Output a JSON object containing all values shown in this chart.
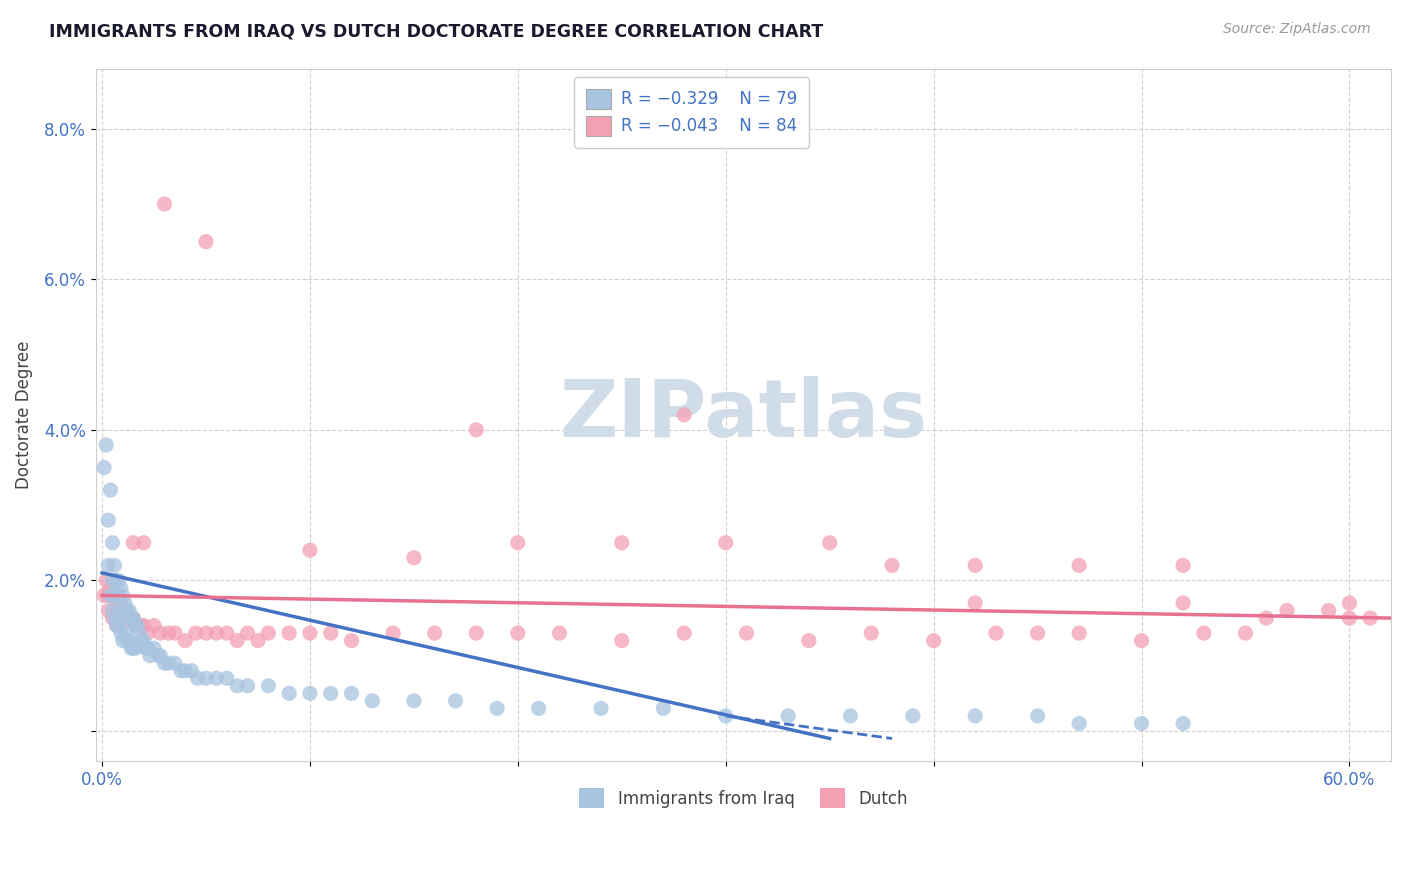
{
  "title": "IMMIGRANTS FROM IRAQ VS DUTCH DOCTORATE DEGREE CORRELATION CHART",
  "source": "Source: ZipAtlas.com",
  "ylabel": "Doctorate Degree",
  "series1_label": "Immigrants from Iraq",
  "series2_label": "Dutch",
  "legend_r1": "R = -0.329",
  "legend_n1": "N = 79",
  "legend_r2": "R = -0.043",
  "legend_n2": "N = 84",
  "series1_color": "#a8c4e0",
  "series2_color": "#f4a0b4",
  "trend1_color": "#4472c4",
  "trend2_color": "#e87090",
  "watermark_color": "#d0dce8",
  "background_color": "#ffffff",
  "grid_color": "#cccccc",
  "title_color": "#1a1a2e",
  "axis_label_color": "#4472c4",
  "xlim": [
    -0.003,
    0.62
  ],
  "ylim": [
    -0.004,
    0.088
  ],
  "yticks": [
    0.0,
    0.02,
    0.04,
    0.06,
    0.08
  ],
  "ytick_labels": [
    "",
    "2.0%",
    "4.0%",
    "6.0%",
    "8.0%"
  ],
  "xtick_vals": [
    0.0,
    0.6
  ],
  "xtick_labels": [
    "0.0%",
    "60.0%"
  ],
  "s1_x": [
    0.001,
    0.002,
    0.003,
    0.003,
    0.004,
    0.004,
    0.005,
    0.005,
    0.005,
    0.006,
    0.006,
    0.006,
    0.007,
    0.007,
    0.007,
    0.008,
    0.008,
    0.008,
    0.009,
    0.009,
    0.009,
    0.01,
    0.01,
    0.01,
    0.011,
    0.011,
    0.012,
    0.012,
    0.013,
    0.013,
    0.014,
    0.014,
    0.015,
    0.015,
    0.016,
    0.016,
    0.017,
    0.018,
    0.019,
    0.02,
    0.021,
    0.022,
    0.023,
    0.025,
    0.027,
    0.028,
    0.03,
    0.032,
    0.035,
    0.038,
    0.04,
    0.043,
    0.046,
    0.05,
    0.055,
    0.06,
    0.065,
    0.07,
    0.08,
    0.09,
    0.1,
    0.11,
    0.12,
    0.13,
    0.15,
    0.17,
    0.19,
    0.21,
    0.24,
    0.27,
    0.3,
    0.33,
    0.36,
    0.39,
    0.42,
    0.45,
    0.47,
    0.5,
    0.52
  ],
  "s1_y": [
    0.035,
    0.038,
    0.028,
    0.022,
    0.032,
    0.018,
    0.025,
    0.02,
    0.016,
    0.022,
    0.018,
    0.015,
    0.02,
    0.018,
    0.014,
    0.02,
    0.018,
    0.014,
    0.019,
    0.016,
    0.013,
    0.018,
    0.015,
    0.012,
    0.017,
    0.013,
    0.016,
    0.012,
    0.016,
    0.012,
    0.015,
    0.011,
    0.015,
    0.011,
    0.014,
    0.011,
    0.014,
    0.013,
    0.012,
    0.012,
    0.011,
    0.011,
    0.01,
    0.011,
    0.01,
    0.01,
    0.009,
    0.009,
    0.009,
    0.008,
    0.008,
    0.008,
    0.007,
    0.007,
    0.007,
    0.007,
    0.006,
    0.006,
    0.006,
    0.005,
    0.005,
    0.005,
    0.005,
    0.004,
    0.004,
    0.004,
    0.003,
    0.003,
    0.003,
    0.003,
    0.002,
    0.002,
    0.002,
    0.002,
    0.002,
    0.002,
    0.001,
    0.001,
    0.001
  ],
  "s2_x": [
    0.001,
    0.002,
    0.003,
    0.003,
    0.004,
    0.005,
    0.005,
    0.006,
    0.006,
    0.007,
    0.007,
    0.008,
    0.008,
    0.009,
    0.009,
    0.01,
    0.011,
    0.012,
    0.013,
    0.014,
    0.015,
    0.016,
    0.017,
    0.019,
    0.02,
    0.022,
    0.025,
    0.028,
    0.032,
    0.035,
    0.04,
    0.045,
    0.05,
    0.055,
    0.06,
    0.065,
    0.07,
    0.075,
    0.08,
    0.09,
    0.1,
    0.11,
    0.12,
    0.14,
    0.16,
    0.18,
    0.2,
    0.22,
    0.25,
    0.28,
    0.31,
    0.34,
    0.37,
    0.4,
    0.43,
    0.45,
    0.47,
    0.5,
    0.53,
    0.55,
    0.57,
    0.59,
    0.61,
    0.35,
    0.3,
    0.25,
    0.2,
    0.15,
    0.1,
    0.05,
    0.03,
    0.02,
    0.015,
    0.38,
    0.42,
    0.47,
    0.52,
    0.56,
    0.6,
    0.18,
    0.28,
    0.42,
    0.52,
    0.6
  ],
  "s2_y": [
    0.018,
    0.02,
    0.018,
    0.016,
    0.019,
    0.018,
    0.015,
    0.018,
    0.015,
    0.018,
    0.014,
    0.017,
    0.014,
    0.017,
    0.014,
    0.016,
    0.016,
    0.015,
    0.015,
    0.015,
    0.015,
    0.014,
    0.014,
    0.014,
    0.014,
    0.013,
    0.014,
    0.013,
    0.013,
    0.013,
    0.012,
    0.013,
    0.013,
    0.013,
    0.013,
    0.012,
    0.013,
    0.012,
    0.013,
    0.013,
    0.013,
    0.013,
    0.012,
    0.013,
    0.013,
    0.013,
    0.013,
    0.013,
    0.012,
    0.013,
    0.013,
    0.012,
    0.013,
    0.012,
    0.013,
    0.013,
    0.013,
    0.012,
    0.013,
    0.013,
    0.016,
    0.016,
    0.015,
    0.025,
    0.025,
    0.025,
    0.025,
    0.023,
    0.024,
    0.065,
    0.07,
    0.025,
    0.025,
    0.022,
    0.022,
    0.022,
    0.022,
    0.015,
    0.015,
    0.04,
    0.042,
    0.017,
    0.017,
    0.017
  ],
  "trend1_x0": 0.0,
  "trend1_y0": 0.021,
  "trend1_x1": 0.35,
  "trend1_y1": -0.001,
  "trend1_dash_x0": 0.3,
  "trend1_dash_y0": 0.002,
  "trend1_dash_x1": 0.38,
  "trend1_dash_y1": -0.001,
  "trend2_x0": 0.0,
  "trend2_y0": 0.018,
  "trend2_x1": 0.62,
  "trend2_y1": 0.015
}
